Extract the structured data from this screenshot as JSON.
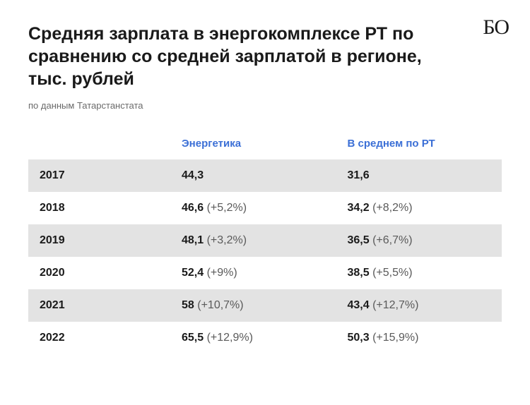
{
  "logo": "БО",
  "title": "Средняя зарплата в энергокомплексе РТ по сравнению со средней зарплатой в регионе, тыс. рублей",
  "subtitle": "по данным Татарстанстата",
  "table": {
    "columns": [
      {
        "label": "",
        "color": "#1a1a1a"
      },
      {
        "label": "Энергетика",
        "color": "#3b6fd6"
      },
      {
        "label": "В среднем по РТ",
        "color": "#3b6fd6"
      }
    ],
    "header_fontsize": 15,
    "header_fontweight": 700,
    "cell_fontsize": 16,
    "value_color": "#1a1a1a",
    "pct_color": "#5a5a5a",
    "row_bg_odd": "#e3e3e3",
    "row_bg_even": "#ffffff",
    "rows": [
      {
        "year": "2017",
        "energy": "44,3",
        "energy_pct": "",
        "avg": "31,6",
        "avg_pct": ""
      },
      {
        "year": "2018",
        "energy": "46,6",
        "energy_pct": "(+5,2%)",
        "avg": "34,2",
        "avg_pct": "(+8,2%)"
      },
      {
        "year": "2019",
        "energy": "48,1",
        "energy_pct": "(+3,2%)",
        "avg": "36,5",
        "avg_pct": "(+6,7%)"
      },
      {
        "year": "2020",
        "energy": "52,4",
        "energy_pct": "(+9%)",
        "avg": "38,5",
        "avg_pct": "(+5,5%)"
      },
      {
        "year": "2021",
        "energy": "58",
        "energy_pct": "(+10,7%)",
        "avg": "43,4",
        "avg_pct": "(+12,7%)"
      },
      {
        "year": "2022",
        "energy": "65,5",
        "energy_pct": "(+12,9%)",
        "avg": "50,3",
        "avg_pct": "(+15,9%)"
      }
    ]
  },
  "background_color": "#ffffff"
}
